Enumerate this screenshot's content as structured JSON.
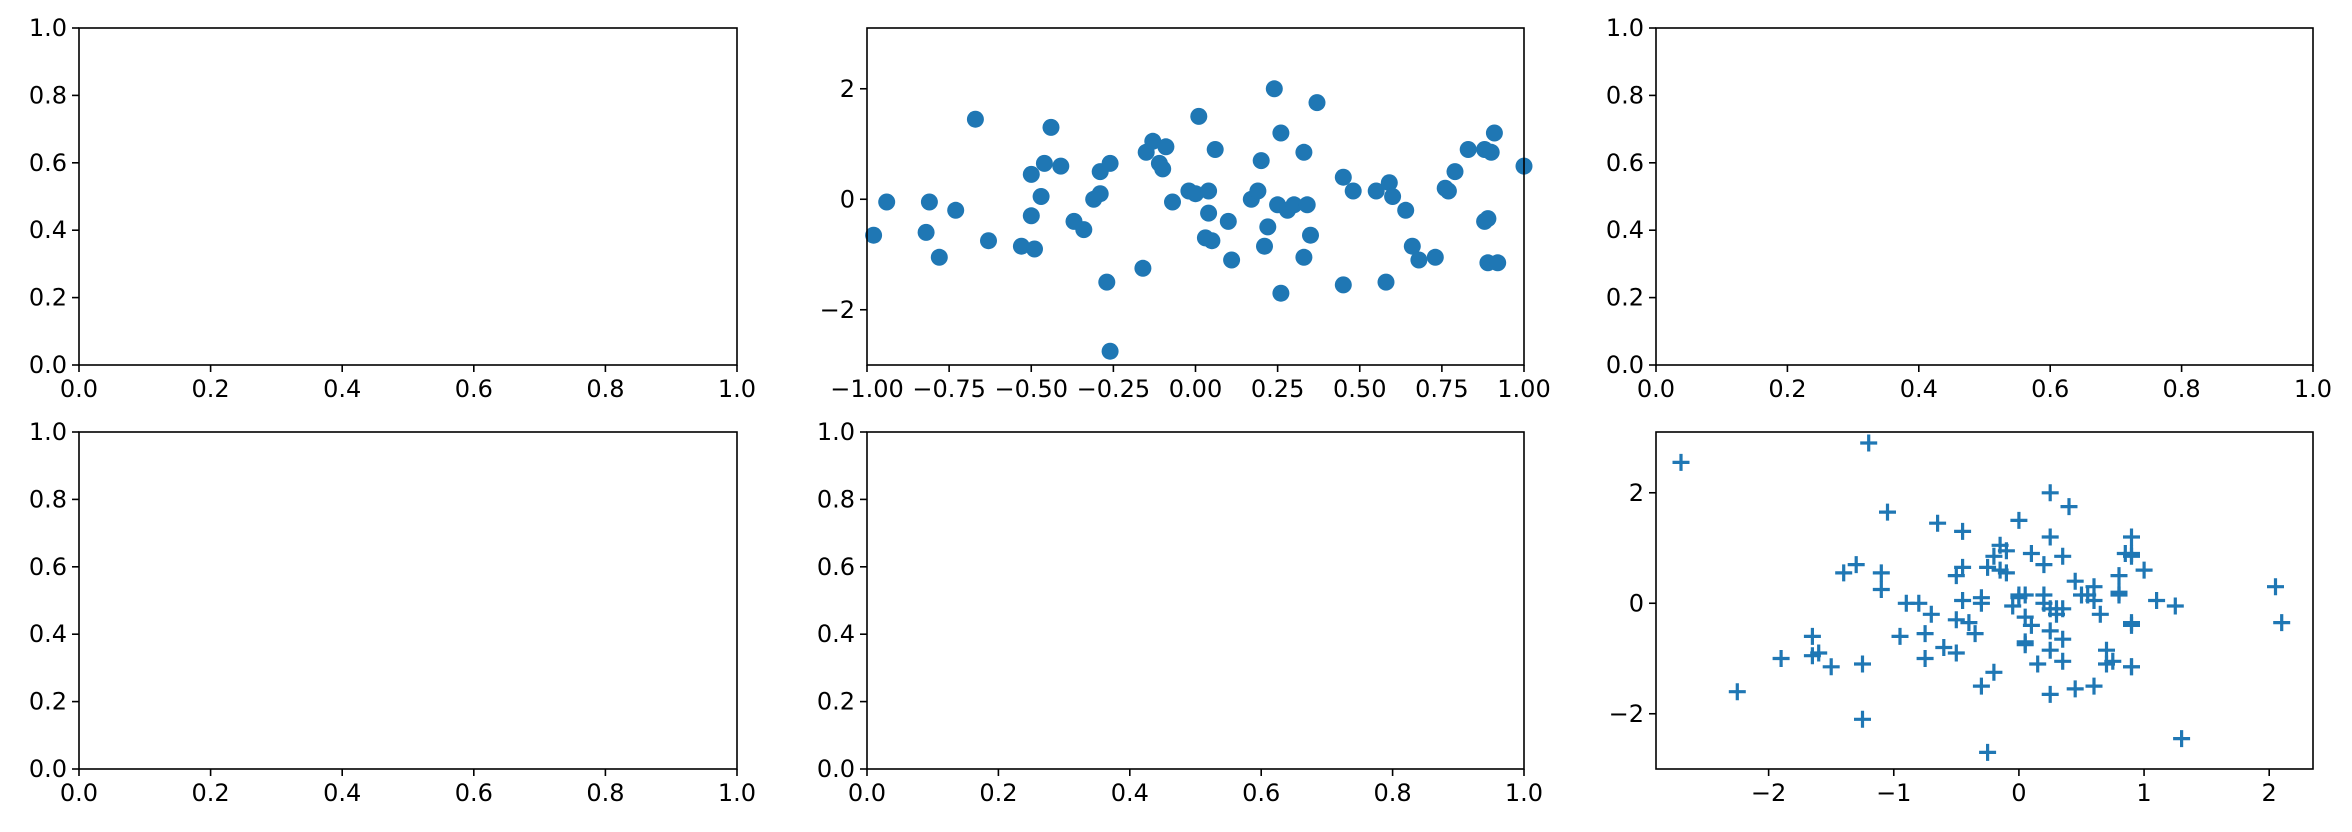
{
  "chart_data": [
    {
      "type": "empty",
      "position": "row-1-col-1",
      "xlim": [
        0,
        1
      ],
      "ylim": [
        0,
        1
      ],
      "xticks": [
        0,
        0.2,
        0.4,
        0.6,
        0.8,
        1
      ],
      "xtick_labels": [
        "0.0",
        "0.2",
        "0.4",
        "0.6",
        "0.8",
        "1.0"
      ],
      "yticks": [
        0,
        0.2,
        0.4,
        0.6,
        0.8,
        1
      ],
      "ytick_labels": [
        "0.0",
        "0.2",
        "0.4",
        "0.6",
        "0.8",
        "1.0"
      ],
      "grid": false
    },
    {
      "type": "scatter",
      "position": "row-1-col-2",
      "marker": "circle",
      "color": "#1f77b4",
      "xlim": [
        -1,
        1
      ],
      "ylim": [
        -3,
        3.1
      ],
      "xticks": [
        -1,
        -0.75,
        -0.5,
        -0.25,
        0,
        0.25,
        0.5,
        0.75,
        1
      ],
      "xtick_labels": [
        "−1.00",
        "−0.75",
        "−0.50",
        "−0.25",
        "0.00",
        "0.25",
        "0.50",
        "0.75",
        "1.00"
      ],
      "yticks": [
        -2,
        0,
        2
      ],
      "ytick_labels": [
        "−2",
        "0",
        "2"
      ],
      "grid": false,
      "points": [
        [
          -0.98,
          -0.65
        ],
        [
          -0.94,
          -0.05
        ],
        [
          -0.81,
          -0.05
        ],
        [
          -0.82,
          -0.6
        ],
        [
          -0.78,
          -1.05
        ],
        [
          -0.73,
          -0.2
        ],
        [
          -0.63,
          -0.75
        ],
        [
          -0.67,
          1.45
        ],
        [
          -0.53,
          -0.85
        ],
        [
          -0.5,
          -0.3
        ],
        [
          -0.5,
          0.45
        ],
        [
          -0.49,
          -0.9
        ],
        [
          -0.47,
          0.05
        ],
        [
          -0.46,
          0.65
        ],
        [
          -0.44,
          1.3
        ],
        [
          -0.41,
          0.6
        ],
        [
          -0.37,
          -0.4
        ],
        [
          -0.34,
          -0.55
        ],
        [
          -0.31,
          0.0
        ],
        [
          -0.29,
          0.1
        ],
        [
          -0.29,
          0.5
        ],
        [
          -0.27,
          -1.5
        ],
        [
          -0.26,
          0.65
        ],
        [
          -0.26,
          -2.75
        ],
        [
          -0.16,
          -1.25
        ],
        [
          -0.15,
          0.85
        ],
        [
          -0.13,
          1.05
        ],
        [
          -0.11,
          0.65
        ],
        [
          -0.1,
          0.55
        ],
        [
          -0.09,
          0.95
        ],
        [
          -0.07,
          -0.05
        ],
        [
          -0.02,
          0.15
        ],
        [
          0.0,
          0.1
        ],
        [
          0.01,
          1.5
        ],
        [
          0.03,
          -0.7
        ],
        [
          0.04,
          0.15
        ],
        [
          0.04,
          -0.25
        ],
        [
          0.05,
          -0.75
        ],
        [
          0.06,
          0.9
        ],
        [
          0.1,
          -0.4
        ],
        [
          0.11,
          -1.1
        ],
        [
          0.17,
          0.0
        ],
        [
          0.19,
          0.15
        ],
        [
          0.2,
          0.7
        ],
        [
          0.21,
          -0.85
        ],
        [
          0.22,
          -0.5
        ],
        [
          0.24,
          2.0
        ],
        [
          0.25,
          -0.1
        ],
        [
          0.26,
          -1.7
        ],
        [
          0.26,
          1.2
        ],
        [
          0.28,
          -0.2
        ],
        [
          0.3,
          -0.1
        ],
        [
          0.33,
          0.85
        ],
        [
          0.33,
          -1.05
        ],
        [
          0.34,
          -0.1
        ],
        [
          0.35,
          -0.65
        ],
        [
          0.37,
          1.75
        ],
        [
          0.45,
          0.4
        ],
        [
          0.45,
          -1.55
        ],
        [
          0.48,
          0.15
        ],
        [
          0.55,
          0.15
        ],
        [
          0.58,
          -1.5
        ],
        [
          0.59,
          0.3
        ],
        [
          0.6,
          0.05
        ],
        [
          0.64,
          -0.2
        ],
        [
          0.66,
          -0.85
        ],
        [
          0.68,
          -1.1
        ],
        [
          0.73,
          -1.05
        ],
        [
          0.76,
          0.2
        ],
        [
          0.77,
          0.15
        ],
        [
          0.79,
          0.5
        ],
        [
          0.83,
          0.9
        ],
        [
          0.88,
          -0.4
        ],
        [
          0.88,
          0.9
        ],
        [
          0.89,
          -0.35
        ],
        [
          0.89,
          -1.15
        ],
        [
          0.9,
          0.85
        ],
        [
          0.91,
          1.2
        ],
        [
          0.92,
          -1.15
        ],
        [
          1.0,
          0.6
        ]
      ]
    },
    {
      "type": "empty",
      "position": "row-1-col-3",
      "xlim": [
        0,
        1
      ],
      "ylim": [
        0,
        1
      ],
      "xticks": [
        0,
        0.2,
        0.4,
        0.6,
        0.8,
        1
      ],
      "xtick_labels": [
        "0.0",
        "0.2",
        "0.4",
        "0.6",
        "0.8",
        "1.0"
      ],
      "yticks": [
        0,
        0.2,
        0.4,
        0.6,
        0.8,
        1
      ],
      "ytick_labels": [
        "0.0",
        "0.2",
        "0.4",
        "0.6",
        "0.8",
        "1.0"
      ],
      "grid": false
    },
    {
      "type": "empty",
      "position": "row-2-col-1",
      "xlim": [
        0,
        1
      ],
      "ylim": [
        0,
        1
      ],
      "xticks": [
        0,
        0.2,
        0.4,
        0.6,
        0.8,
        1
      ],
      "xtick_labels": [
        "0.0",
        "0.2",
        "0.4",
        "0.6",
        "0.8",
        "1.0"
      ],
      "yticks": [
        0,
        0.2,
        0.4,
        0.6,
        0.8,
        1
      ],
      "ytick_labels": [
        "0.0",
        "0.2",
        "0.4",
        "0.6",
        "0.8",
        "1.0"
      ],
      "grid": false
    },
    {
      "type": "empty",
      "position": "row-2-col-2",
      "xlim": [
        0,
        1
      ],
      "ylim": [
        0,
        1
      ],
      "xticks": [
        0,
        0.2,
        0.4,
        0.6,
        0.8,
        1
      ],
      "xtick_labels": [
        "0.0",
        "0.2",
        "0.4",
        "0.6",
        "0.8",
        "1.0"
      ],
      "yticks": [
        0,
        0.2,
        0.4,
        0.6,
        0.8,
        1
      ],
      "ytick_labels": [
        "0.0",
        "0.2",
        "0.4",
        "0.6",
        "0.8",
        "1.0"
      ],
      "grid": false
    },
    {
      "type": "scatter",
      "position": "row-2-col-3",
      "marker": "plus",
      "color": "#1f77b4",
      "xlim": [
        -2.9,
        2.35
      ],
      "ylim": [
        -3,
        3.1
      ],
      "xticks": [
        -2,
        -1,
        0,
        1,
        2
      ],
      "xtick_labels": [
        "−2",
        "−1",
        "0",
        "1",
        "2"
      ],
      "yticks": [
        -2,
        0,
        2
      ],
      "ytick_labels": [
        "−2",
        "0",
        "2"
      ],
      "grid": false,
      "points": [
        [
          -2.7,
          2.55
        ],
        [
          -2.25,
          -1.6
        ],
        [
          -1.9,
          -1.0
        ],
        [
          -1.65,
          -0.6
        ],
        [
          -1.65,
          -0.95
        ],
        [
          -1.6,
          -0.9
        ],
        [
          -1.5,
          -1.15
        ],
        [
          -1.4,
          0.55
        ],
        [
          -1.3,
          0.7
        ],
        [
          -1.25,
          -2.1
        ],
        [
          -1.25,
          -1.1
        ],
        [
          -1.2,
          2.9
        ],
        [
          -1.1,
          0.55
        ],
        [
          -1.1,
          0.25
        ],
        [
          -1.05,
          1.65
        ],
        [
          -0.95,
          -0.6
        ],
        [
          -0.9,
          0.0
        ],
        [
          -0.8,
          0.0
        ],
        [
          -0.75,
          -0.55
        ],
        [
          -0.75,
          -1.0
        ],
        [
          -0.7,
          -0.2
        ],
        [
          -0.65,
          1.45
        ],
        [
          -0.6,
          -0.8
        ],
        [
          -0.5,
          -0.3
        ],
        [
          -0.5,
          -0.9
        ],
        [
          -0.45,
          0.05
        ],
        [
          -0.45,
          0.65
        ],
        [
          -0.45,
          1.3
        ],
        [
          -0.5,
          0.5
        ],
        [
          -0.4,
          -0.35
        ],
        [
          -0.35,
          -0.55
        ],
        [
          -0.3,
          0.0
        ],
        [
          -0.3,
          0.1
        ],
        [
          -0.3,
          -1.5
        ],
        [
          -0.25,
          0.65
        ],
        [
          -0.25,
          -2.7
        ],
        [
          -0.2,
          -1.25
        ],
        [
          -0.2,
          0.85
        ],
        [
          -0.15,
          1.05
        ],
        [
          -0.15,
          0.6
        ],
        [
          -0.1,
          0.55
        ],
        [
          -0.1,
          0.95
        ],
        [
          -0.05,
          -0.05
        ],
        [
          0.0,
          0.15
        ],
        [
          0.0,
          0.1
        ],
        [
          0.0,
          1.5
        ],
        [
          0.05,
          -0.7
        ],
        [
          0.05,
          0.15
        ],
        [
          0.05,
          -0.25
        ],
        [
          0.05,
          -0.75
        ],
        [
          0.1,
          0.9
        ],
        [
          0.1,
          -0.4
        ],
        [
          0.15,
          -1.1
        ],
        [
          0.2,
          0.0
        ],
        [
          0.2,
          0.15
        ],
        [
          0.2,
          0.7
        ],
        [
          0.25,
          -0.85
        ],
        [
          0.25,
          -0.5
        ],
        [
          0.25,
          2.0
        ],
        [
          0.25,
          -0.1
        ],
        [
          0.25,
          -1.65
        ],
        [
          0.25,
          1.2
        ],
        [
          0.3,
          -0.2
        ],
        [
          0.3,
          -0.1
        ],
        [
          0.35,
          0.85
        ],
        [
          0.35,
          -1.05
        ],
        [
          0.35,
          -0.1
        ],
        [
          0.35,
          -0.65
        ],
        [
          0.4,
          1.75
        ],
        [
          0.45,
          0.4
        ],
        [
          0.45,
          -1.55
        ],
        [
          0.5,
          0.15
        ],
        [
          0.55,
          0.15
        ],
        [
          0.6,
          -1.5
        ],
        [
          0.6,
          0.3
        ],
        [
          0.6,
          0.05
        ],
        [
          0.65,
          -0.2
        ],
        [
          0.7,
          -0.85
        ],
        [
          0.7,
          -1.1
        ],
        [
          0.75,
          -1.05
        ],
        [
          0.8,
          0.2
        ],
        [
          0.8,
          0.15
        ],
        [
          0.8,
          0.5
        ],
        [
          0.85,
          0.9
        ],
        [
          0.9,
          -0.4
        ],
        [
          0.9,
          0.9
        ],
        [
          0.9,
          -0.35
        ],
        [
          0.9,
          -1.15
        ],
        [
          0.9,
          0.85
        ],
        [
          0.9,
          1.2
        ],
        [
          0.9,
          -1.15
        ],
        [
          1.0,
          0.6
        ],
        [
          1.1,
          0.05
        ],
        [
          1.25,
          -0.05
        ],
        [
          1.3,
          -2.45
        ],
        [
          2.05,
          0.3
        ],
        [
          2.1,
          -0.35
        ]
      ]
    }
  ]
}
